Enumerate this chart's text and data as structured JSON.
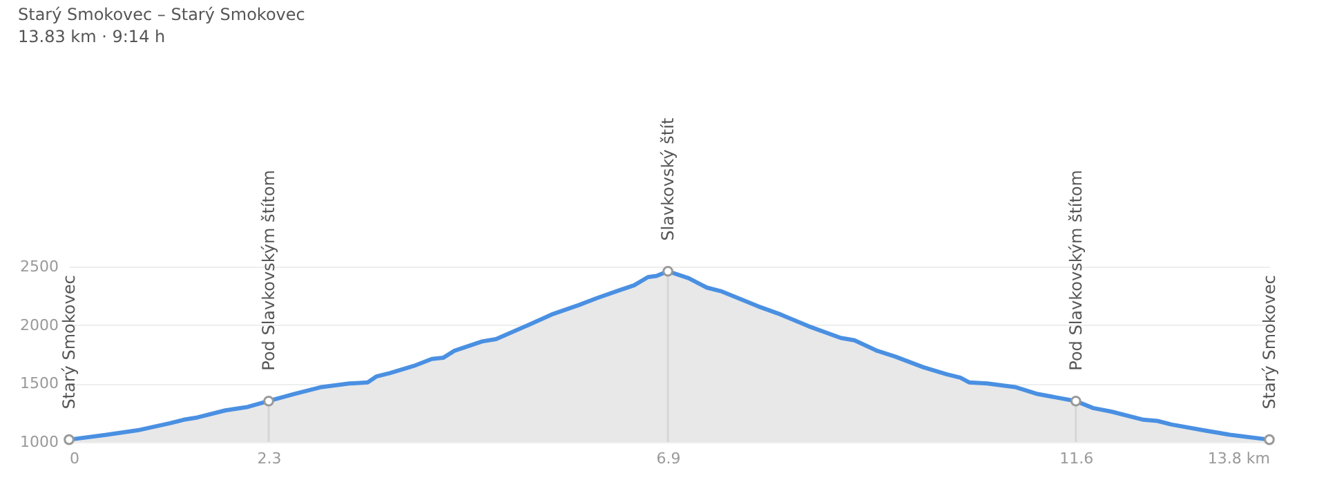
{
  "chart_data": {
    "type": "area",
    "title": "Starý Smokovec – Starý Smokovec",
    "subtitle": "13.83 km · 9:14 h",
    "xlim": [
      0,
      13.83
    ],
    "xticks": [
      0,
      2.3,
      6.9,
      11.6,
      {
        "value": 13.83,
        "label": "13.8 km"
      }
    ],
    "ylim": [
      1000,
      2500
    ],
    "yticks": [
      1000,
      1500,
      2000,
      2500
    ],
    "grid": "y",
    "series": [
      {
        "color": "#4a90e2",
        "x": [
          0,
          0.42,
          0.79,
          1.16,
          1.32,
          1.48,
          1.8,
          2.06,
          2.3,
          2.59,
          2.91,
          3.23,
          3.44,
          3.54,
          3.7,
          3.97,
          4.18,
          4.31,
          4.44,
          4.76,
          4.92,
          5.29,
          5.56,
          5.87,
          6.08,
          6.35,
          6.51,
          6.67,
          6.77,
          6.9,
          7.14,
          7.35,
          7.51,
          7.94,
          8.2,
          8.52,
          8.89,
          9.05,
          9.31,
          9.52,
          9.84,
          10.11,
          10.27,
          10.37,
          10.58,
          10.9,
          11.16,
          11.38,
          11.6,
          11.8,
          12.01,
          12.38,
          12.54,
          12.7,
          13.07,
          13.39,
          13.83
        ],
        "values": [
          1020,
          1060,
          1100,
          1160,
          1190,
          1210,
          1270,
          1300,
          1350,
          1410,
          1470,
          1500,
          1510,
          1560,
          1590,
          1650,
          1710,
          1720,
          1780,
          1860,
          1880,
          2000,
          2090,
          2170,
          2230,
          2300,
          2340,
          2410,
          2420,
          2460,
          2400,
          2320,
          2290,
          2160,
          2090,
          1990,
          1890,
          1870,
          1780,
          1730,
          1640,
          1580,
          1550,
          1510,
          1500,
          1470,
          1410,
          1380,
          1350,
          1290,
          1260,
          1190,
          1180,
          1150,
          1100,
          1060,
          1020
        ]
      },
      {
        "type": "scatter",
        "color": "#999999",
        "marker": "circle",
        "x": [
          0,
          2.3,
          6.9,
          11.6,
          13.83
        ],
        "values": [
          1020,
          1350,
          2460,
          1350,
          1020
        ]
      }
    ],
    "ref_lines": [
      {
        "axis": "x",
        "value": 2.3,
        "color": "#d6d6d6"
      },
      {
        "axis": "x",
        "value": 6.9,
        "color": "#d6d6d6"
      },
      {
        "axis": "x",
        "value": 11.6,
        "color": "#d6d6d6"
      }
    ],
    "annotations": [
      {
        "text": "Starý Smokovec",
        "x": 0,
        "y": 1020
      },
      {
        "text": "Pod Slavkovským štítom",
        "x": 2.3,
        "y": 1350
      },
      {
        "text": "Slavkovský štít",
        "x": 6.9,
        "y": 2460
      },
      {
        "text": "Pod Slavkovským štítom",
        "x": 11.6,
        "y": 1350
      },
      {
        "text": "Starý Smokovec",
        "x": 13.83,
        "y": 1020
      }
    ]
  }
}
